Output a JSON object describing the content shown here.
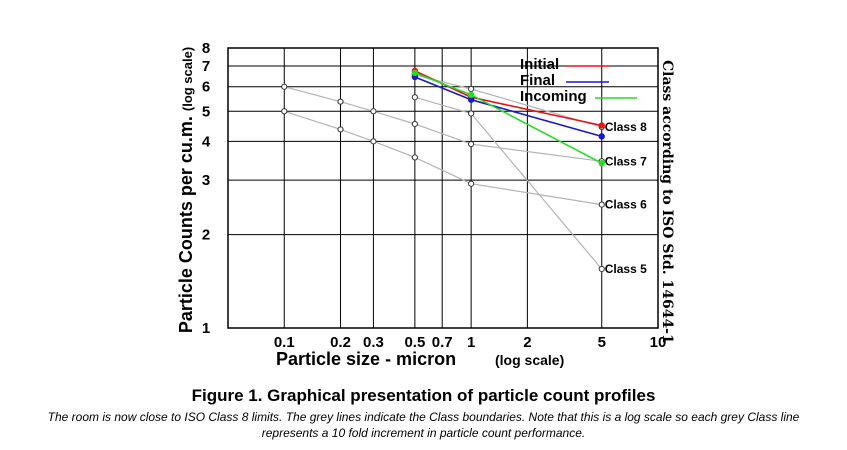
{
  "chart_data": {
    "type": "line",
    "xscale": "log",
    "yscale": "log",
    "xlim": [
      0.05,
      10
    ],
    "ylim": [
      1,
      8
    ],
    "xlabel": "Particle size - micron",
    "xlabel_note": "(log scale)",
    "ylabel": "Particle Counts per cu.m.",
    "ylabel_note": "(log scale)",
    "right_label": "Class according to ISO Std. 14644-1",
    "x_ticks": [
      {
        "value": 0.1,
        "label": "0.1"
      },
      {
        "value": 0.2,
        "label": "0.2"
      },
      {
        "value": 0.3,
        "label": "0.3"
      },
      {
        "value": 0.5,
        "label": "0.5"
      },
      {
        "value": 0.7,
        "label": "0.7"
      },
      {
        "value": 1,
        "label": "1"
      },
      {
        "value": 2,
        "label": "2"
      },
      {
        "value": 5,
        "label": "5"
      },
      {
        "value": 10,
        "label": "10"
      }
    ],
    "y_ticks": [
      {
        "value": 1,
        "label": "1"
      },
      {
        "value": 2,
        "label": "2"
      },
      {
        "value": 3,
        "label": "3"
      },
      {
        "value": 4,
        "label": "4"
      },
      {
        "value": 5,
        "label": "5"
      },
      {
        "value": 6,
        "label": "6"
      },
      {
        "value": 7,
        "label": "7"
      },
      {
        "value": 8,
        "label": "8"
      }
    ],
    "grid": true,
    "legend_position": "top-right",
    "series": [
      {
        "name": "Initial",
        "color": "#ee1111",
        "points": [
          {
            "x": 0.5,
            "y": 6.75
          },
          {
            "x": 1,
            "y": 5.55
          },
          {
            "x": 5,
            "y": 4.5
          }
        ]
      },
      {
        "name": "Final",
        "color": "#1a1acc",
        "points": [
          {
            "x": 0.5,
            "y": 6.45
          },
          {
            "x": 1,
            "y": 5.45
          },
          {
            "x": 5,
            "y": 4.15
          }
        ]
      },
      {
        "name": "Incoming",
        "color": "#22dd22",
        "points": [
          {
            "x": 0.5,
            "y": 6.65
          },
          {
            "x": 1,
            "y": 5.65
          },
          {
            "x": 5,
            "y": 3.4
          }
        ]
      }
    ],
    "class_lines": [
      {
        "label": "Class 8",
        "color": "#b4b4b4",
        "points": [
          {
            "x": 0.5,
            "y": 6.55
          },
          {
            "x": 1,
            "y": 5.9
          },
          {
            "x": 5,
            "y": 4.45
          }
        ]
      },
      {
        "label": "Class 7",
        "color": "#b4b4b4",
        "points": [
          {
            "x": 0.1,
            "y": 6.0
          },
          {
            "x": 0.2,
            "y": 5.37
          },
          {
            "x": 0.3,
            "y": 5.0
          },
          {
            "x": 0.5,
            "y": 4.55
          },
          {
            "x": 1,
            "y": 3.92
          },
          {
            "x": 5,
            "y": 3.45
          }
        ]
      },
      {
        "label": "Class 6",
        "color": "#b4b4b4",
        "points": [
          {
            "x": 0.1,
            "y": 5.0
          },
          {
            "x": 0.2,
            "y": 4.37
          },
          {
            "x": 0.3,
            "y": 4.0
          },
          {
            "x": 0.5,
            "y": 3.55
          },
          {
            "x": 1,
            "y": 2.92
          },
          {
            "x": 5,
            "y": 2.5
          }
        ]
      },
      {
        "label": "Class 5",
        "color": "#b4b4b4",
        "points": [
          {
            "x": 0.5,
            "y": 5.55
          },
          {
            "x": 1,
            "y": 4.92
          },
          {
            "x": 5,
            "y": 1.55
          }
        ]
      }
    ]
  },
  "figure": {
    "title": "Figure 1. Graphical presentation of particle count profiles",
    "caption": "The room is now close to ISO Class 8 limits.  The grey lines indicate the Class boundaries.  Note that this is a log scale so each grey Class line represents a 10 fold increment in particle count performance."
  }
}
